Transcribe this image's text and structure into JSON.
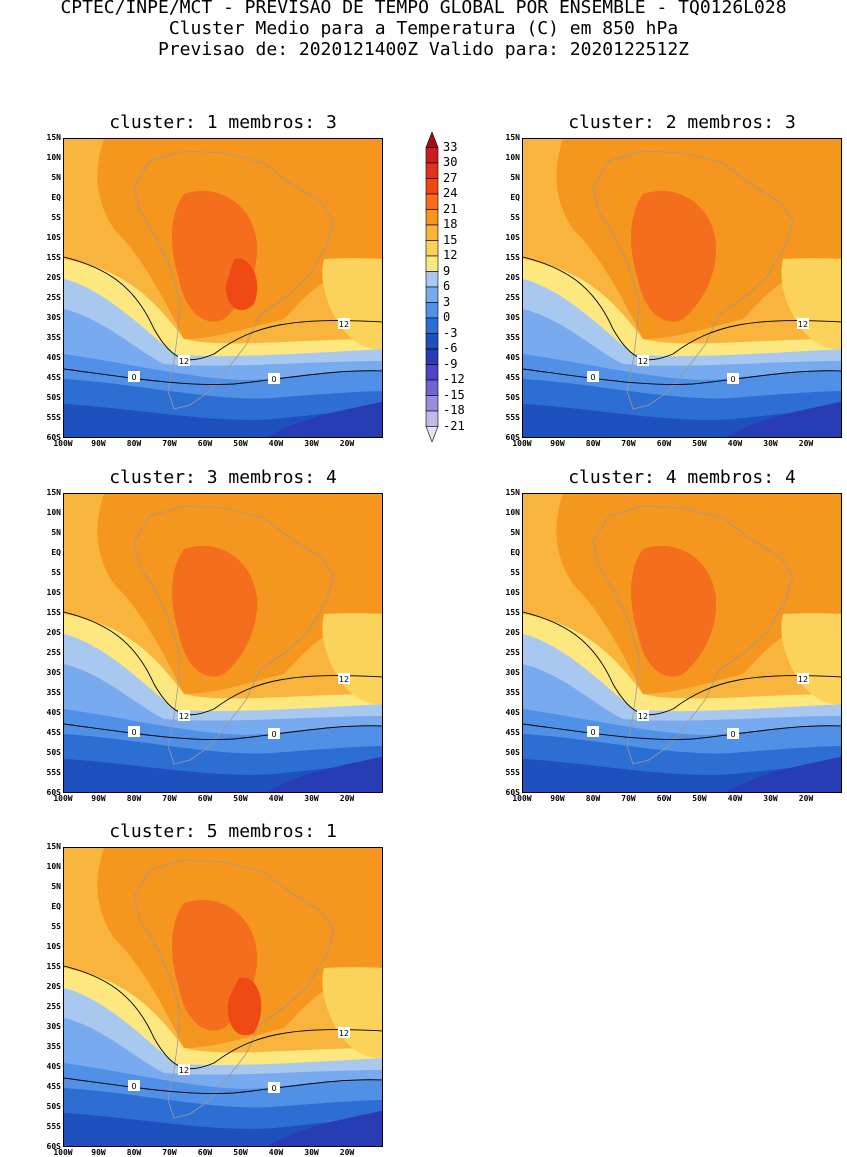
{
  "header": {
    "line1": "CPTEC/INPE/MCT - PREVISAO DE TEMPO GLOBAL POR ENSEMBLE - TQ0126L028",
    "line2": "Cluster Medio para a Temperatura (C) em 850 hPa",
    "line3": "Previsao de: 2020121400Z   Valido para: 2020122512Z"
  },
  "panels": [
    {
      "title": "cluster: 1   membros: 3"
    },
    {
      "title": "cluster: 2   membros: 3"
    },
    {
      "title": "cluster: 3   membros: 4"
    },
    {
      "title": "cluster: 4   membros: 4"
    },
    {
      "title": "cluster: 5   membros: 1"
    }
  ],
  "axes": {
    "lat_labels": [
      "15N",
      "10N",
      "5N",
      "EQ",
      "5S",
      "10S",
      "15S",
      "20S",
      "25S",
      "30S",
      "35S",
      "40S",
      "45S",
      "50S",
      "55S",
      "60S"
    ],
    "lon_labels": [
      "100W",
      "90W",
      "80W",
      "70W",
      "60W",
      "50W",
      "40W",
      "30W",
      "20W"
    ]
  },
  "colorbar": {
    "labels": [
      "33",
      "30",
      "27",
      "24",
      "21",
      "18",
      "15",
      "12",
      "9",
      "6",
      "3",
      "0",
      "-3",
      "-6",
      "-9",
      "-12",
      "-15",
      "-18",
      "-21"
    ],
    "colors": [
      "#a50f15",
      "#c81e1e",
      "#e0321e",
      "#f04a14",
      "#f56e1e",
      "#f5961e",
      "#f8b43c",
      "#fbd25a",
      "#fde87f",
      "#a8c8f0",
      "#78aaf0",
      "#5090e6",
      "#2d6ed2",
      "#1e50be",
      "#283cb4",
      "#4b46c8",
      "#6e64d2",
      "#9b8cdc",
      "#c3b9e6",
      "#e6e1f5"
    ],
    "contour_labels": [
      "12",
      "0"
    ]
  }
}
